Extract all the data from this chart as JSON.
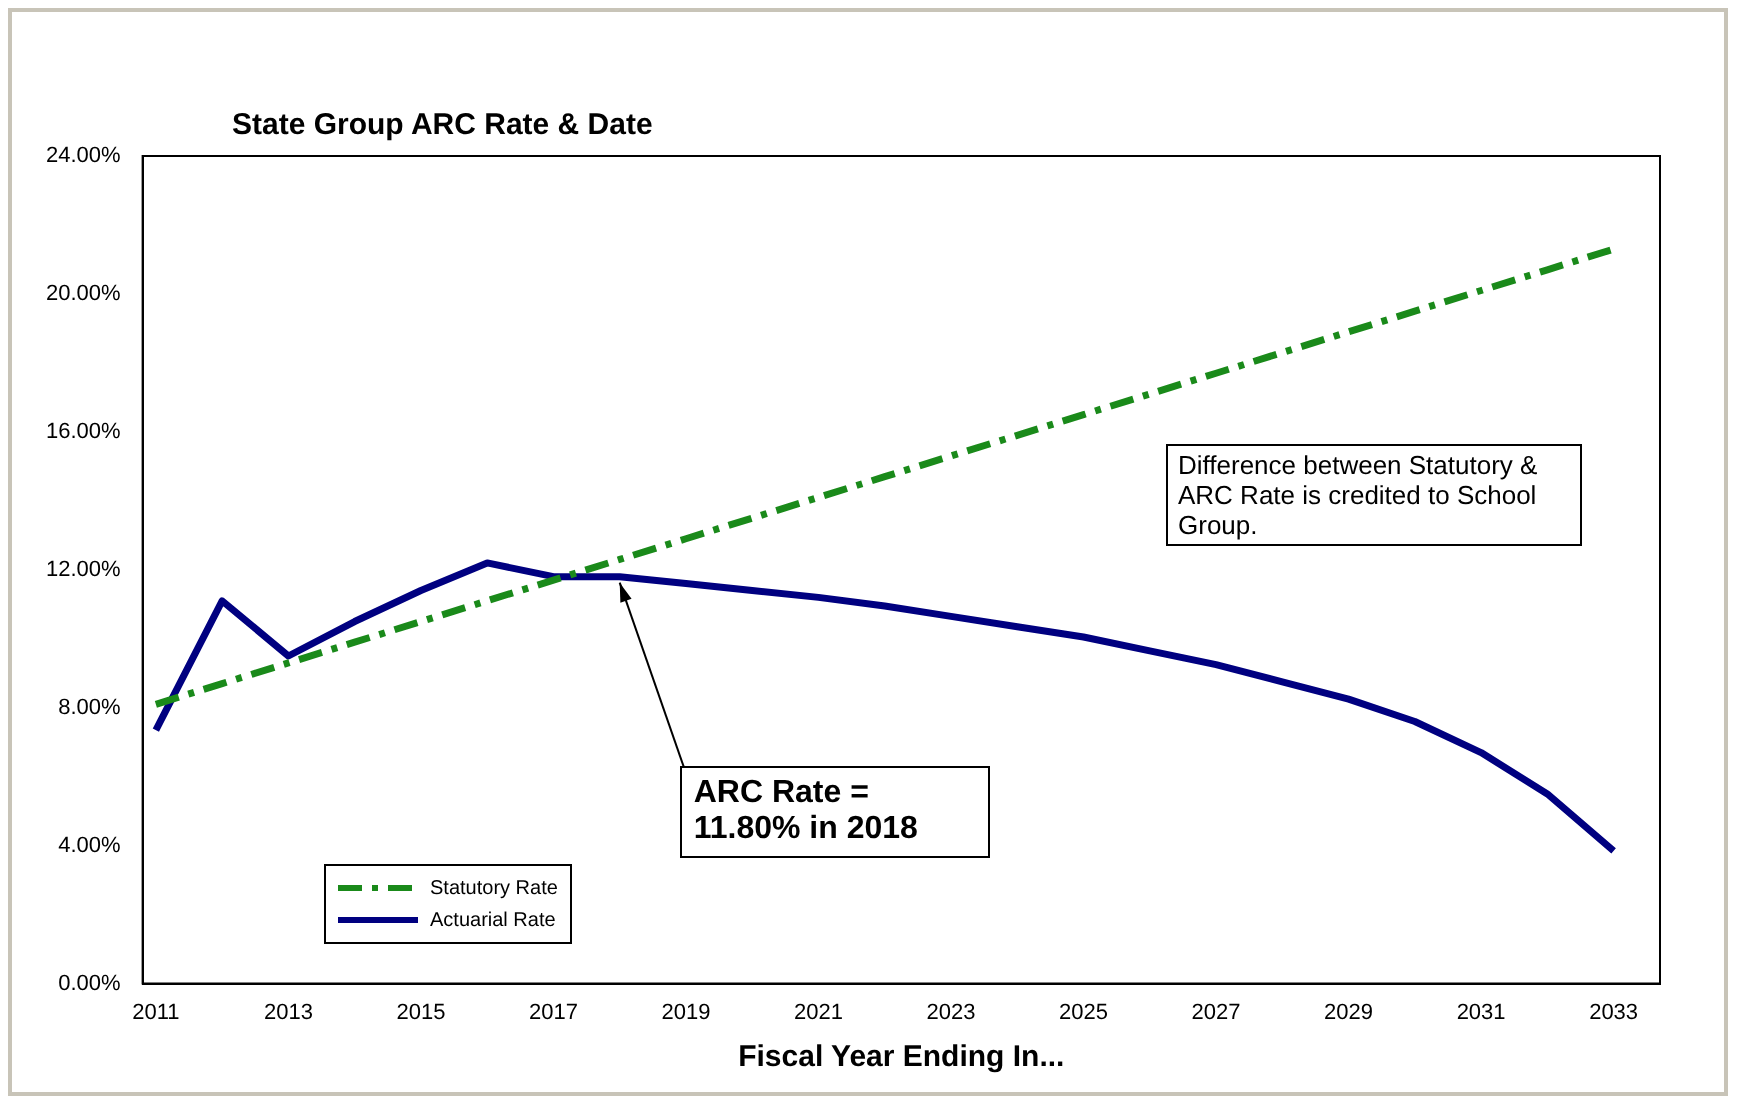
{
  "chart_data": {
    "type": "line",
    "title": "State Group ARC Rate & Date",
    "xlabel": "Fiscal Year Ending In...",
    "x": [
      2011,
      2012,
      2013,
      2014,
      2015,
      2016,
      2017,
      2018,
      2019,
      2020,
      2021,
      2022,
      2023,
      2024,
      2025,
      2026,
      2027,
      2028,
      2029,
      2030,
      2031,
      2032,
      2033
    ],
    "series": [
      {
        "name": "Statutory Rate",
        "color": "#1a8a1a",
        "line_style": "dashed",
        "values": [
          8.1,
          8.7,
          9.3,
          9.9,
          10.5,
          11.1,
          11.7,
          12.3,
          12.9,
          13.5,
          14.1,
          14.7,
          15.3,
          15.9,
          16.5,
          17.1,
          17.7,
          18.3,
          18.9,
          19.5,
          20.1,
          20.7,
          21.3
        ]
      },
      {
        "name": "Actuarial Rate",
        "color": "#000080",
        "line_style": "solid",
        "values": [
          7.35,
          11.1,
          9.5,
          10.5,
          11.4,
          12.2,
          11.8,
          11.8,
          11.6,
          11.4,
          11.2,
          10.95,
          10.65,
          10.35,
          10.05,
          9.65,
          9.25,
          8.75,
          8.25,
          7.6,
          6.7,
          5.5,
          3.85
        ]
      }
    ],
    "xlim": [
      2010.8,
      2033.7
    ],
    "xticks": [
      2011,
      2013,
      2015,
      2017,
      2019,
      2021,
      2023,
      2025,
      2027,
      2029,
      2031,
      2033
    ],
    "ylim": [
      0,
      24
    ],
    "yticks": [
      {
        "value": 0,
        "label": "0.00%"
      },
      {
        "value": 4,
        "label": "4.00%"
      },
      {
        "value": 8,
        "label": "8.00%"
      },
      {
        "value": 12,
        "label": "12.00%"
      },
      {
        "value": 16,
        "label": "16.00%"
      },
      {
        "value": 20,
        "label": "20.00%"
      },
      {
        "value": 24,
        "label": "24.00%"
      }
    ],
    "grid": false,
    "legend": "bottom left",
    "marker": "none",
    "annotations": [
      "Difference between Statutory & ARC Rate is credited to School Group.",
      {
        "text": "ARC Rate = 11.80% in 2018",
        "x": 2018,
        "y": 11.8
      }
    ]
  }
}
